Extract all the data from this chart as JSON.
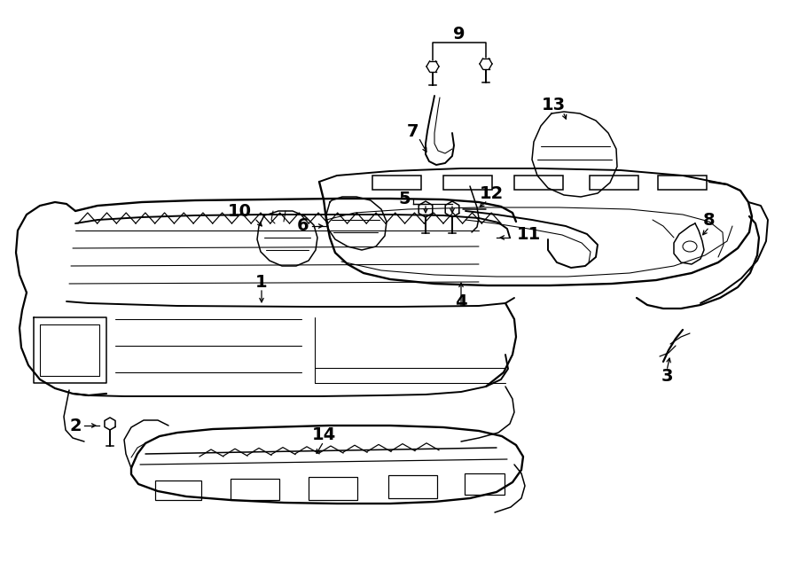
{
  "bg": "#ffffff",
  "lc": "#000000",
  "figsize": [
    9.0,
    6.61
  ],
  "dpi": 100,
  "lw": 1.1,
  "fs": 14
}
